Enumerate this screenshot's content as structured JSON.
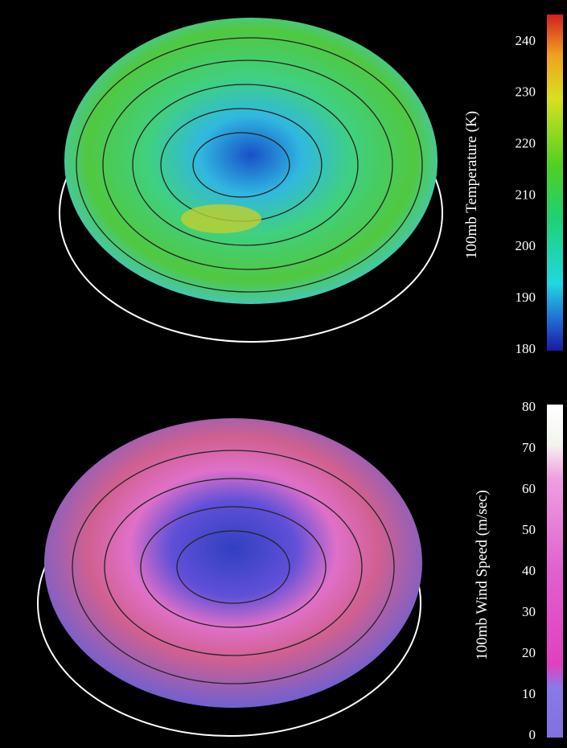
{
  "panels": [
    {
      "label": "100mb Temperature (K)",
      "ticks": [
        180,
        190,
        200,
        210,
        220,
        230,
        240
      ]
    },
    {
      "label": "100mb Wind Speed (m/sec)",
      "ticks": [
        0,
        10,
        20,
        30,
        40,
        50,
        60,
        70,
        80
      ]
    }
  ]
}
